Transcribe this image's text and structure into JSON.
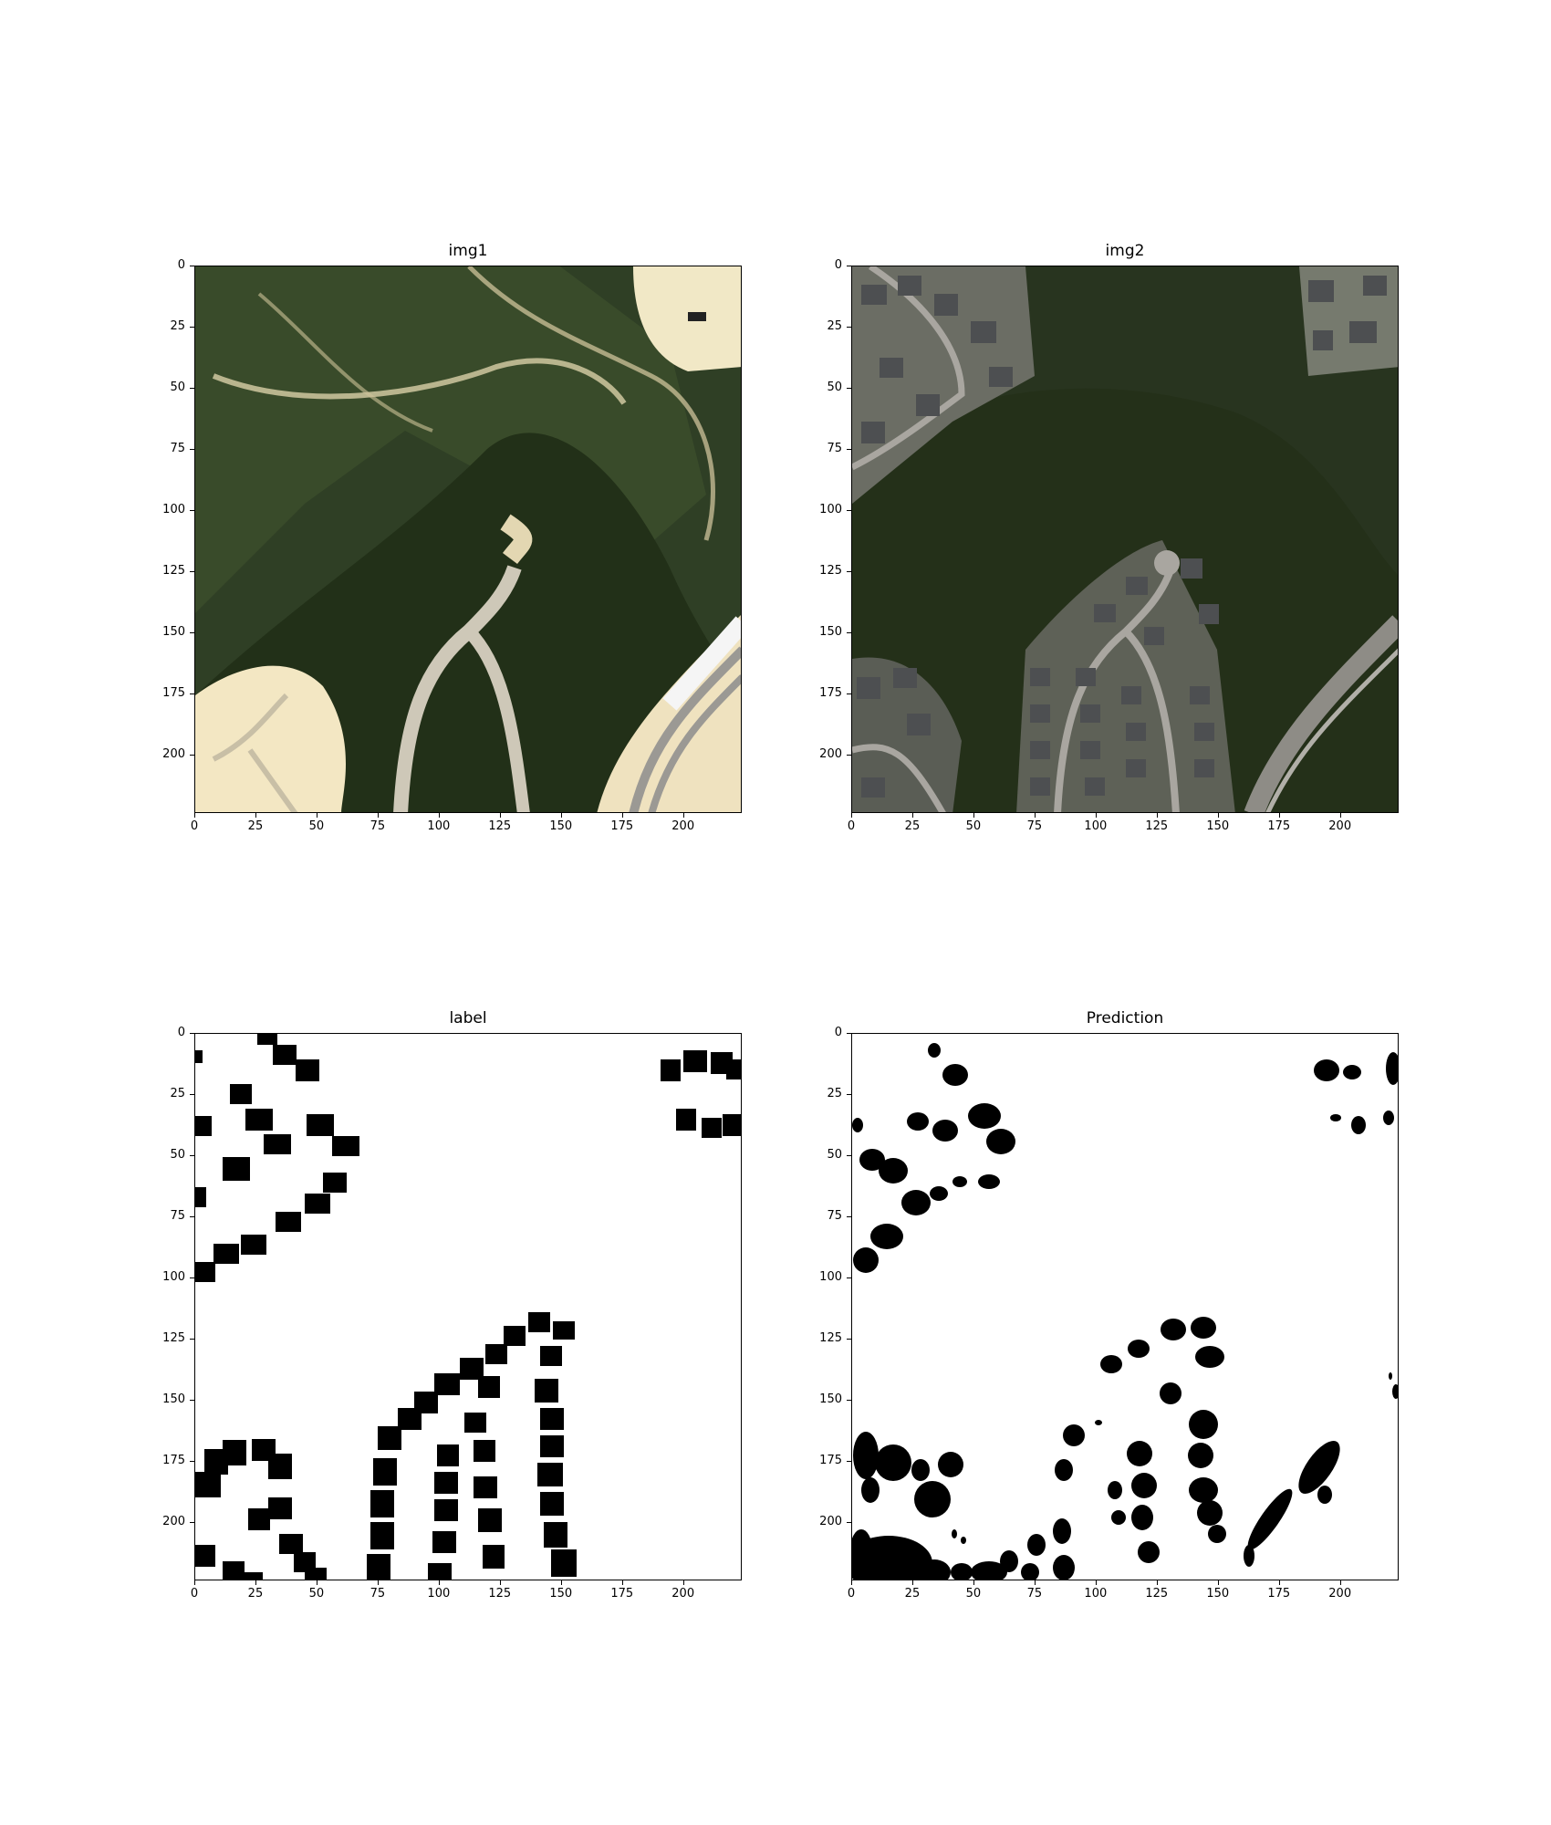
{
  "figure": {
    "panels": [
      {
        "id": "img1",
        "title": "img1",
        "kind": "satellite-before"
      },
      {
        "id": "img2",
        "title": "img2",
        "kind": "satellite-after"
      },
      {
        "id": "label",
        "title": "label",
        "kind": "binary-mask"
      },
      {
        "id": "prediction",
        "title": "Prediction",
        "kind": "binary-mask"
      }
    ],
    "x_ticks": [
      "0",
      "25",
      "50",
      "75",
      "100",
      "125",
      "150",
      "175",
      "200"
    ],
    "y_ticks": [
      "0",
      "25",
      "50",
      "75",
      "100",
      "125",
      "150",
      "175",
      "200"
    ],
    "image_size": 224,
    "colors": {
      "forest_dark": "#24331f",
      "forest_mid": "#3a4a2c",
      "sand": "#e9dcb8",
      "road": "#b9b3a3",
      "house_roof": "#6e6e70",
      "mask_fg": "#000000",
      "mask_bg": "#ffffff"
    }
  }
}
